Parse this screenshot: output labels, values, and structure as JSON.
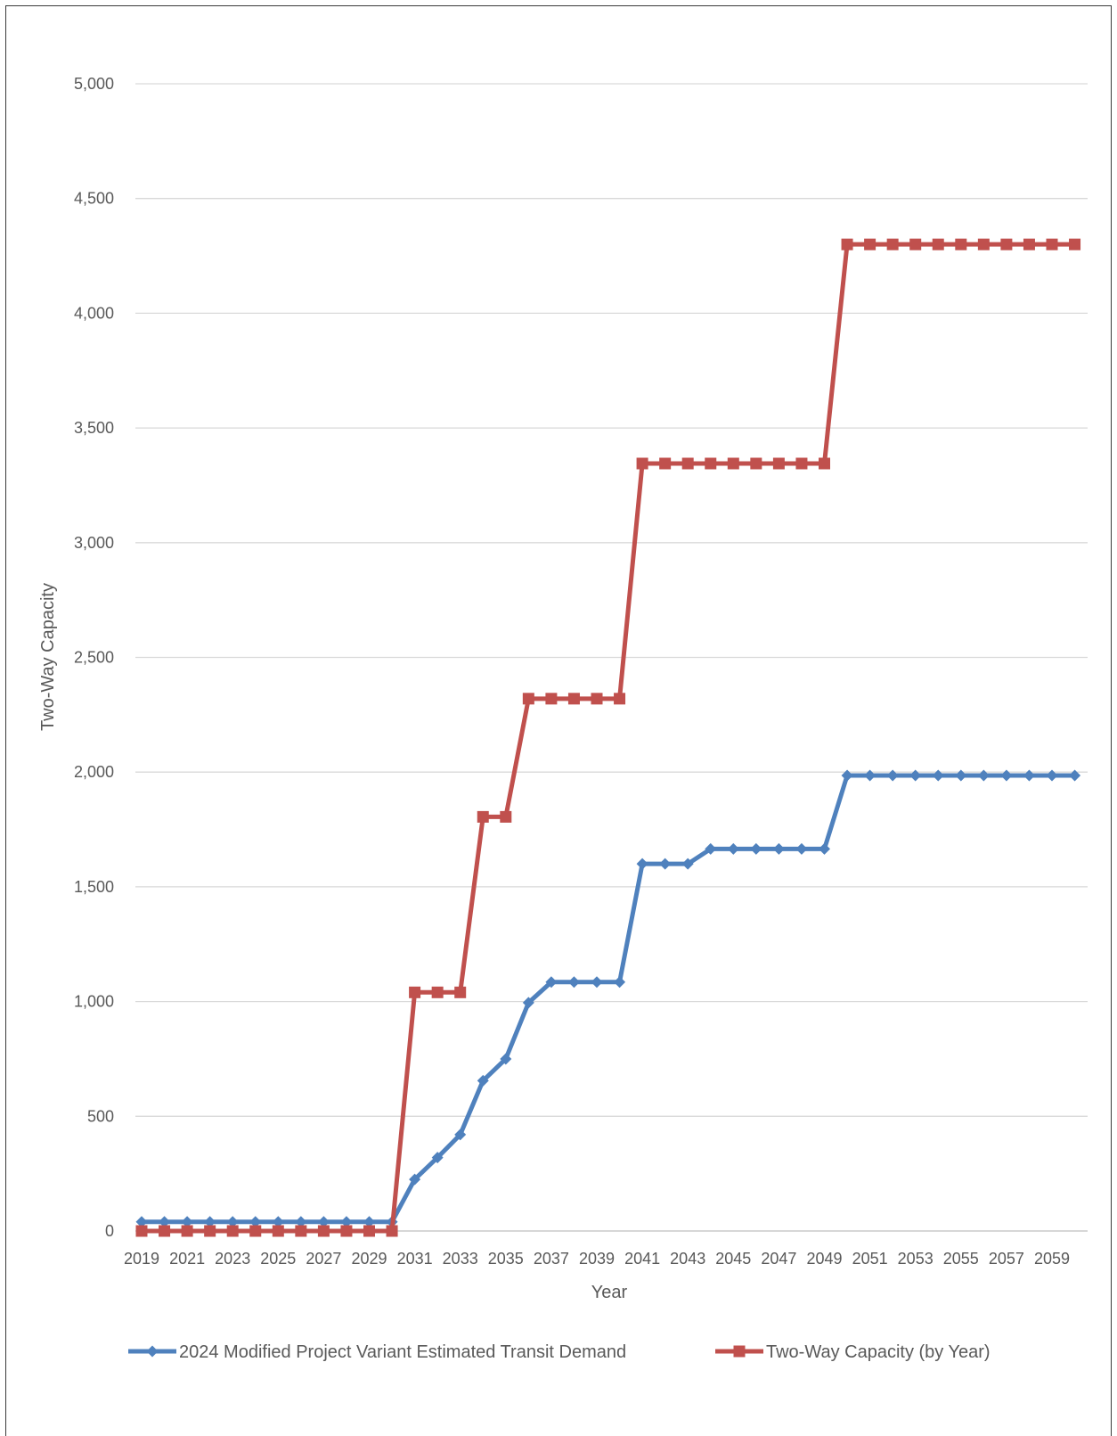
{
  "chart_data": {
    "type": "line",
    "xlabel": "Year",
    "ylabel": "Two-Way Capacity",
    "ylim": [
      0,
      5000
    ],
    "yticks": [
      "0",
      "500",
      "1,000",
      "1,500",
      "2,000",
      "2,500",
      "3,000",
      "3,500",
      "4,000",
      "4,500",
      "5,000"
    ],
    "ytick_values": [
      0,
      500,
      1000,
      1500,
      2000,
      2500,
      3000,
      3500,
      4000,
      4500,
      5000
    ],
    "x": [
      2019,
      2020,
      2021,
      2022,
      2023,
      2024,
      2025,
      2026,
      2027,
      2028,
      2029,
      2030,
      2031,
      2032,
      2033,
      2034,
      2035,
      2036,
      2037,
      2038,
      2039,
      2040,
      2041,
      2042,
      2043,
      2044,
      2045,
      2046,
      2047,
      2048,
      2049,
      2050,
      2051,
      2052,
      2053,
      2054,
      2055,
      2056,
      2057,
      2058,
      2059,
      2060
    ],
    "xtick_labels": [
      "2019",
      "2021",
      "2023",
      "2025",
      "2027",
      "2029",
      "2031",
      "2033",
      "2035",
      "2037",
      "2039",
      "2041",
      "2043",
      "2045",
      "2047",
      "2049",
      "2051",
      "2053",
      "2055",
      "2057",
      "2059"
    ],
    "grid": true,
    "legend_position": "bottom",
    "series": [
      {
        "name": "2024 Modified Project Variant Estimated Transit Demand",
        "color": "#4f81bd",
        "marker": "diamond",
        "values": [
          40,
          40,
          40,
          40,
          40,
          40,
          40,
          40,
          40,
          40,
          40,
          40,
          225,
          320,
          420,
          655,
          750,
          995,
          1085,
          1085,
          1085,
          1085,
          1600,
          1600,
          1600,
          1665,
          1665,
          1665,
          1665,
          1665,
          1665,
          1985,
          1985,
          1985,
          1985,
          1985,
          1985,
          1985,
          1985,
          1985,
          1985,
          1985
        ]
      },
      {
        "name": "Two-Way Capacity (by Year)",
        "color": "#c0504d",
        "marker": "square",
        "values": [
          0,
          0,
          0,
          0,
          0,
          0,
          0,
          0,
          0,
          0,
          0,
          0,
          1040,
          1040,
          1040,
          1805,
          1805,
          2320,
          2320,
          2320,
          2320,
          2320,
          3345,
          3345,
          3345,
          3345,
          3345,
          3345,
          3345,
          3345,
          3345,
          4300,
          4300,
          4300,
          4300,
          4300,
          4300,
          4300,
          4300,
          4300,
          4300,
          4300
        ]
      }
    ]
  }
}
